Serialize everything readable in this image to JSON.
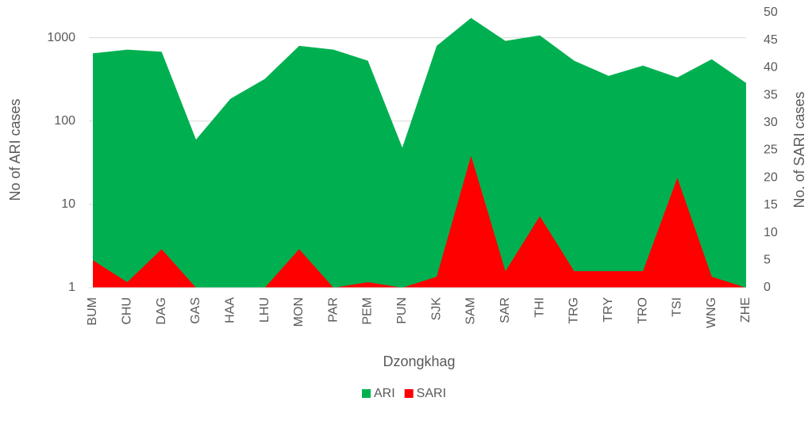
{
  "chart_data": {
    "type": "area",
    "x_label": "Dzongkhag",
    "y_label": "No of ARI cases",
    "y2_label": "No. of SARI cases",
    "categories": [
      "BUM",
      "CHU",
      "DAG",
      "GAS",
      "HAA",
      "LHU",
      "MON",
      "PAR",
      "PEM",
      "PUN",
      "SJK",
      "SAM",
      "SAR",
      "THI",
      "TRG",
      "TRY",
      "TRO",
      "TSI",
      "WNG",
      "ZHE"
    ],
    "series": [
      {
        "name": "ARI",
        "color": "#00b050",
        "values": [
          650,
          720,
          680,
          60,
          185,
          320,
          800,
          720,
          530,
          48,
          800,
          1730,
          916,
          1068,
          530,
          349,
          464,
          334,
          553,
          287
        ]
      },
      {
        "name": "SARI",
        "color": "#ff0000",
        "axis": "y2",
        "values": [
          5,
          1,
          7,
          0,
          0,
          0,
          7,
          0,
          1,
          0,
          2,
          24,
          3,
          13,
          3,
          3,
          3,
          20,
          2,
          0
        ]
      }
    ],
    "log_y": true,
    "ylim": [
      1,
      2000
    ],
    "yticks": [
      1,
      10,
      100,
      1000
    ],
    "y2lim": [
      0,
      50
    ],
    "y2ticks": [
      0,
      5,
      10,
      15,
      20,
      25,
      30,
      35,
      40,
      45,
      50
    ],
    "grid": true,
    "legend": "bottom"
  }
}
